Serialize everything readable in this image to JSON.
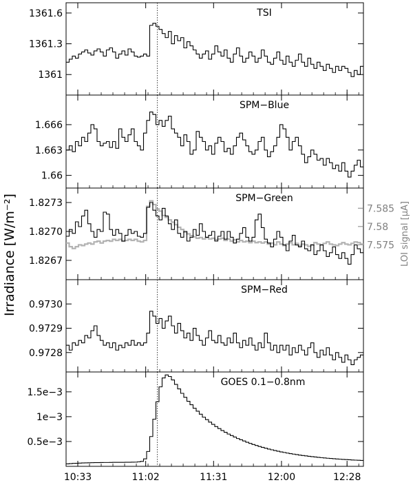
{
  "figure": {
    "ylabel": "Irradiance [W/m⁻²]",
    "x_tick_labels": [
      "10:33",
      "11:02",
      "11:31",
      "12:00",
      "12:28"
    ],
    "x_tick_minutes": [
      633,
      662,
      691,
      720,
      748
    ],
    "x_range_minutes": [
      628,
      755
    ],
    "flare_peak_minute": 667,
    "colors": {
      "main": "#000000",
      "loi": "#b3b3b3",
      "marker": "#000000",
      "right_axis_text": "#808080"
    }
  },
  "chart_data": [
    {
      "type": "line",
      "step": true,
      "title": "TSI",
      "ylim": [
        1360.8,
        1361.7
      ],
      "yticks": [
        1361,
        1361.3,
        1361.6
      ],
      "ytick_labels": [
        "1361",
        "1361.3",
        "1361.6"
      ],
      "series": [
        {
          "values": [
            1361.12,
            1361.15,
            1361.18,
            1361.16,
            1361.2,
            1361.22,
            1361.24,
            1361.21,
            1361.19,
            1361.23,
            1361.25,
            1361.22,
            1361.18,
            1361.24,
            1361.26,
            1361.22,
            1361.16,
            1361.2,
            1361.23,
            1361.19,
            1361.25,
            1361.22,
            1361.18,
            1361.17,
            1361.18,
            1361.2,
            1361.18,
            1361.48,
            1361.5,
            1361.47,
            1361.44,
            1361.4,
            1361.36,
            1361.42,
            1361.3,
            1361.38,
            1361.33,
            1361.36,
            1361.26,
            1361.32,
            1361.28,
            1361.24,
            1361.2,
            1361.16,
            1361.2,
            1361.23,
            1361.15,
            1361.2,
            1361.28,
            1361.22,
            1361.18,
            1361.24,
            1361.16,
            1361.12,
            1361.2,
            1361.26,
            1361.18,
            1361.12,
            1361.16,
            1361.22,
            1361.18,
            1361.12,
            1361.16,
            1361.24,
            1361.18,
            1361.12,
            1361.1,
            1361.16,
            1361.22,
            1361.14,
            1361.1,
            1361.18,
            1361.12,
            1361.08,
            1361.14,
            1361.2,
            1361.12,
            1361.08,
            1361.16,
            1361.1,
            1361.06,
            1361.12,
            1361.08,
            1361.04,
            1361.1,
            1361.06,
            1361.02,
            1361.08,
            1361.04,
            1361.08,
            1361.06,
            1361.02,
            1360.98,
            1361.04,
            1361.0,
            1361.08
          ]
        }
      ]
    },
    {
      "type": "line",
      "step": true,
      "title": "SPM−Blue",
      "ylim": [
        1.6585,
        1.6695
      ],
      "yticks": [
        1.66,
        1.663,
        1.666
      ],
      "ytick_labels": [
        "1.66",
        "1.663",
        "1.666"
      ],
      "series": [
        {
          "values": [
            1.663,
            1.6635,
            1.6628,
            1.664,
            1.6635,
            1.6645,
            1.664,
            1.665,
            1.666,
            1.6655,
            1.664,
            1.6635,
            1.6638,
            1.664,
            1.6633,
            1.664,
            1.6632,
            1.6655,
            1.6645,
            1.664,
            1.6648,
            1.6655,
            1.664,
            1.6635,
            1.663,
            1.665,
            1.6665,
            1.6675,
            1.6672,
            1.666,
            1.6665,
            1.6658,
            1.6665,
            1.667,
            1.6655,
            1.665,
            1.6645,
            1.6635,
            1.6648,
            1.664,
            1.6625,
            1.663,
            1.6652,
            1.6645,
            1.664,
            1.663,
            1.6635,
            1.6625,
            1.6638,
            1.6645,
            1.664,
            1.6628,
            1.6632,
            1.6625,
            1.6635,
            1.6645,
            1.665,
            1.6642,
            1.6635,
            1.6628,
            1.6625,
            1.663,
            1.664,
            1.6645,
            1.663,
            1.6622,
            1.6628,
            1.6635,
            1.6645,
            1.666,
            1.6655,
            1.6645,
            1.663,
            1.664,
            1.6645,
            1.6635,
            1.6625,
            1.6615,
            1.6622,
            1.663,
            1.6625,
            1.6618,
            1.662,
            1.6612,
            1.662,
            1.6615,
            1.6608,
            1.6612,
            1.6605,
            1.6615,
            1.6605,
            1.6598,
            1.6605,
            1.6612,
            1.6618,
            1.661
          ]
        }
      ]
    },
    {
      "type": "line",
      "step": true,
      "title": "SPM−Green",
      "ylim": [
        1.8265,
        1.82745
      ],
      "yticks": [
        1.8267,
        1.827,
        1.8273
      ],
      "ytick_labels": [
        "1.8267",
        "1.8270",
        "1.8273"
      ],
      "right_axis": {
        "label": "LOI signal [μA]",
        "ylim": [
          7.5655,
          7.5905
        ],
        "yticks": [
          7.575,
          7.58,
          7.585
        ],
        "ytick_labels": [
          "7.575",
          "7.58",
          "7.585"
        ]
      },
      "series": [
        {
          "values": [
            1.82695,
            1.82702,
            1.82698,
            1.8271,
            1.82705,
            1.82716,
            1.82722,
            1.82708,
            1.827,
            1.82694,
            1.82702,
            1.827,
            1.8272,
            1.82718,
            1.82702,
            1.82696,
            1.82702,
            1.82698,
            1.8269,
            1.82696,
            1.82702,
            1.82698,
            1.827,
            1.82695,
            1.82694,
            1.82698,
            1.82725,
            1.8273,
            1.82722,
            1.82716,
            1.82712,
            1.82724,
            1.82716,
            1.82708,
            1.82702,
            1.82712,
            1.82698,
            1.82694,
            1.827,
            1.8269,
            1.82694,
            1.82702,
            1.82696,
            1.82708,
            1.827,
            1.82694,
            1.82696,
            1.827,
            1.8269,
            1.82695,
            1.827,
            1.82692,
            1.827,
            1.82694,
            1.82688,
            1.82692,
            1.82698,
            1.82704,
            1.82694,
            1.8269,
            1.82694,
            1.82712,
            1.82718,
            1.82704,
            1.82692,
            1.82688,
            1.82684,
            1.82692,
            1.827,
            1.82694,
            1.82686,
            1.8268,
            1.8269,
            1.82696,
            1.82686,
            1.82684,
            1.8269,
            1.82682,
            1.8268,
            1.82686,
            1.82676,
            1.8268,
            1.82686,
            1.8268,
            1.82674,
            1.82678,
            1.82684,
            1.82676,
            1.82672,
            1.82678,
            1.82672,
            1.82666,
            1.82676,
            1.82686,
            1.82682,
            1.82678
          ]
        },
        {
          "axis": "right",
          "values": [
            7.5755,
            7.5745,
            7.574,
            7.5745,
            7.575,
            7.5748,
            7.5752,
            7.5755,
            7.5752,
            7.5758,
            7.576,
            7.5755,
            7.576,
            7.5762,
            7.576,
            7.5765,
            7.5762,
            7.5765,
            7.576,
            7.5762,
            7.5765,
            7.5762,
            7.5765,
            7.576,
            7.5758,
            7.5762,
            7.5855,
            7.587,
            7.586,
            7.5848,
            7.5842,
            7.583,
            7.5825,
            7.5818,
            7.5812,
            7.5805,
            7.5798,
            7.5792,
            7.5785,
            7.578,
            7.5775,
            7.5772,
            7.5768,
            7.577,
            7.5766,
            7.577,
            7.5766,
            7.5768,
            7.5764,
            7.5766,
            7.5768,
            7.5762,
            7.5766,
            7.576,
            7.5764,
            7.5758,
            7.5762,
            7.5758,
            7.576,
            7.5756,
            7.576,
            7.5756,
            7.5758,
            7.5755,
            7.5758,
            7.5752,
            7.5755,
            7.575,
            7.5758,
            7.5752,
            7.5748,
            7.5752,
            7.5756,
            7.575,
            7.5754,
            7.5748,
            7.5752,
            7.575,
            7.5746,
            7.575,
            7.5756,
            7.5752,
            7.575,
            7.5754,
            7.5758,
            7.5752,
            7.575,
            7.5748,
            7.5752,
            7.5756,
            7.5752,
            7.575,
            7.5754,
            7.5758,
            7.5756,
            7.5752
          ]
        }
      ]
    },
    {
      "type": "line",
      "step": true,
      "title": "SPM−Red",
      "ylim": [
        0.97272,
        0.9731
      ],
      "yticks": [
        0.9728,
        0.9729,
        0.973
      ],
      "ytick_labels": [
        "0.9728",
        "0.9729",
        "0.9730"
      ],
      "series": [
        {
          "values": [
            0.97283,
            0.97281,
            0.97284,
            0.97283,
            0.97285,
            0.97284,
            0.97287,
            0.97286,
            0.97289,
            0.97291,
            0.97287,
            0.97285,
            0.97283,
            0.97284,
            0.97282,
            0.97284,
            0.97281,
            0.97283,
            0.97282,
            0.97284,
            0.97283,
            0.97285,
            0.97283,
            0.97284,
            0.97283,
            0.97284,
            0.97288,
            0.97297,
            0.97295,
            0.97292,
            0.97294,
            0.9729,
            0.97293,
            0.97295,
            0.97291,
            0.97288,
            0.97292,
            0.97289,
            0.97286,
            0.97288,
            0.97285,
            0.9729,
            0.97287,
            0.97285,
            0.97283,
            0.97286,
            0.97289,
            0.97285,
            0.97284,
            0.97287,
            0.97284,
            0.97283,
            0.97286,
            0.97284,
            0.97288,
            0.97284,
            0.97282,
            0.97285,
            0.97283,
            0.97286,
            0.97283,
            0.97281,
            0.97284,
            0.97282,
            0.97288,
            0.97284,
            0.97281,
            0.97283,
            0.9728,
            0.97283,
            0.97281,
            0.97283,
            0.97279,
            0.97282,
            0.9728,
            0.97283,
            0.97281,
            0.97279,
            0.97282,
            0.97284,
            0.9728,
            0.97278,
            0.97281,
            0.97279,
            0.97282,
            0.97279,
            0.97277,
            0.9728,
            0.97278,
            0.97276,
            0.97279,
            0.97277,
            0.97275,
            0.97277,
            0.97278,
            0.97279
          ]
        }
      ]
    },
    {
      "type": "line",
      "step": true,
      "title": "GOES 0.1−0.8nm",
      "ylim": [
        0,
        0.0019
      ],
      "yticks": [
        0.0005,
        0.001,
        0.0015
      ],
      "ytick_labels": [
        "0.5e−3",
        "1e−3",
        "1.5e−3"
      ],
      "series": [
        {
          "values": [
            5e-05,
            5.5e-05,
            6e-05,
            6.2e-05,
            6.5e-05,
            6.8e-05,
            7e-05,
            7.2e-05,
            7.4e-05,
            7.5e-05,
            7.6e-05,
            7.7e-05,
            7.8e-05,
            7.8e-05,
            7.9e-05,
            8e-05,
            8e-05,
            8e-05,
            8.1e-05,
            8.2e-05,
            8.3e-05,
            8.4e-05,
            8.5e-05,
            9e-05,
            0.0001,
            0.00015,
            0.0003,
            0.0006,
            0.00095,
            0.0013,
            0.0016,
            0.00178,
            0.00184,
            0.00181,
            0.00174,
            0.00165,
            0.00156,
            0.00147,
            0.00139,
            0.00131,
            0.00124,
            0.00117,
            0.00111,
            0.00105,
            0.00099,
            0.00094,
            0.00089,
            0.000845,
            0.0008,
            0.00076,
            0.00072,
            0.000685,
            0.00065,
            0.00062,
            0.00059,
            0.00056,
            0.000535,
            0.00051,
            0.000485,
            0.000462,
            0.00044,
            0.00042,
            0.0004,
            0.000382,
            0.000365,
            0.000348,
            0.000333,
            0.000318,
            0.000304,
            0.000291,
            0.000279,
            0.000267,
            0.000256,
            0.000246,
            0.000236,
            0.000226,
            0.000218,
            0.00021,
            0.000202,
            0.000195,
            0.000188,
            0.000181,
            0.000175,
            0.000169,
            0.000163,
            0.000158,
            0.000153,
            0.000148,
            0.000144,
            0.00014,
            0.000136,
            0.000132,
            0.000128,
            0.000125,
            0.000122,
            0.000119
          ]
        }
      ]
    }
  ]
}
